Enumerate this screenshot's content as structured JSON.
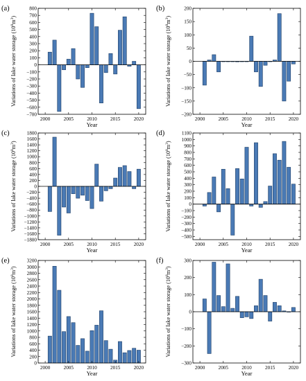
{
  "chart_data": [
    {
      "panel": "(a)",
      "type": "bar",
      "xlabel": "Year",
      "ylabel_main": "Variations of lake water storage (10",
      "ylabel_sup1": "8",
      "ylabel_mid": "m",
      "ylabel_sup2": "3",
      "ylabel_end": ")",
      "ylim": [
        -700,
        800
      ],
      "yticks": [
        -700,
        -600,
        -500,
        -400,
        -300,
        -200,
        -100,
        0,
        100,
        200,
        300,
        400,
        500,
        600,
        700,
        800
      ],
      "xlim": [
        1998.5,
        2021.5
      ],
      "xticks": [
        2000,
        2005,
        2010,
        2015,
        2020
      ],
      "years": [
        2001,
        2002,
        2003,
        2004,
        2005,
        2006,
        2007,
        2008,
        2009,
        2010,
        2011,
        2012,
        2013,
        2014,
        2015,
        2016,
        2017,
        2018,
        2019,
        2020
      ],
      "values": [
        180,
        350,
        -660,
        -70,
        80,
        230,
        -200,
        -320,
        -40,
        730,
        540,
        -540,
        -110,
        160,
        -130,
        490,
        680,
        -20,
        50,
        -620
      ]
    },
    {
      "panel": "(b)",
      "type": "bar",
      "xlabel": "Year",
      "ylabel_main": "Variations of lake water storage (10",
      "ylabel_sup1": "8",
      "ylabel_mid": "m",
      "ylabel_sup2": "3",
      "ylabel_end": ")",
      "ylim": [
        -200,
        200
      ],
      "yticks": [
        -200,
        -150,
        -100,
        -50,
        0,
        50,
        100,
        150,
        200
      ],
      "xlim": [
        1998.5,
        2021.5
      ],
      "xticks": [
        2000,
        2005,
        2010,
        2015,
        2020
      ],
      "years": [
        2001,
        2002,
        2003,
        2004,
        2005,
        2006,
        2007,
        2008,
        2009,
        2010,
        2011,
        2012,
        2013,
        2014,
        2015,
        2016,
        2017,
        2018,
        2019,
        2020
      ],
      "values": [
        -90,
        5,
        25,
        -40,
        0,
        0,
        0,
        -2,
        0,
        0,
        95,
        -40,
        -95,
        -15,
        0,
        5,
        180,
        -150,
        -75,
        -10
      ]
    },
    {
      "panel": "(c)",
      "type": "bar",
      "xlabel": "Year",
      "ylabel_main": "Variations of lake water storage (10",
      "ylabel_sup1": "8",
      "ylabel_mid": "m",
      "ylabel_sup2": "3",
      "ylabel_end": ")",
      "ylim": [
        -1800,
        1800
      ],
      "yticks": [
        -1800,
        -1600,
        -1400,
        -1200,
        -1000,
        -800,
        -600,
        -400,
        -200,
        0,
        200,
        400,
        600,
        800,
        1000,
        1200,
        1400,
        1600,
        1800
      ],
      "xlim": [
        1998.5,
        2021.5
      ],
      "xticks": [
        2000,
        2005,
        2010,
        2015,
        2020
      ],
      "years": [
        2001,
        2002,
        2003,
        2004,
        2005,
        2006,
        2007,
        2008,
        2009,
        2010,
        2011,
        2012,
        2013,
        2014,
        2015,
        2016,
        2017,
        2018,
        2019,
        2020
      ],
      "values": [
        -850,
        1660,
        -1650,
        -700,
        -900,
        -250,
        -400,
        -300,
        -480,
        -750,
        750,
        -500,
        -150,
        -80,
        280,
        640,
        700,
        500,
        -80,
        580
      ]
    },
    {
      "panel": "(d)",
      "type": "bar",
      "xlabel": "Year",
      "ylabel_main": "Variations of lake water storage (10",
      "ylabel_sup1": "8",
      "ylabel_mid": "m",
      "ylabel_sup2": "3",
      "ylabel_end": ")",
      "ylim": [
        -550,
        1100
      ],
      "yticks": [
        -500,
        -400,
        -300,
        -200,
        -100,
        0,
        100,
        200,
        300,
        400,
        500,
        600,
        700,
        800,
        900,
        1000,
        1100
      ],
      "xlim": [
        1998.5,
        2021.5
      ],
      "xticks": [
        2000,
        2005,
        2010,
        2015,
        2020
      ],
      "years": [
        2001,
        2002,
        2003,
        2004,
        2005,
        2006,
        2007,
        2008,
        2009,
        2010,
        2011,
        2012,
        2013,
        2014,
        2015,
        2016,
        2017,
        2018,
        2019,
        2020
      ],
      "values": [
        -30,
        180,
        420,
        -120,
        540,
        240,
        -480,
        550,
        390,
        880,
        -30,
        950,
        -50,
        40,
        280,
        780,
        680,
        970,
        570,
        310
      ]
    },
    {
      "panel": "(e)",
      "type": "bar",
      "xlabel": "Year",
      "ylabel_main": "Variations of lake water storage (10",
      "ylabel_sup1": "8",
      "ylabel_mid": "m",
      "ylabel_sup2": "3",
      "ylabel_end": ")",
      "ylim": [
        0,
        3200
      ],
      "yticks": [
        0,
        200,
        400,
        600,
        800,
        1000,
        1200,
        1400,
        1600,
        1800,
        2000,
        2200,
        2400,
        2600,
        2800,
        3000,
        3200
      ],
      "xlim": [
        1998.5,
        2021.5
      ],
      "xticks": [
        2000,
        2005,
        2010,
        2015,
        2020
      ],
      "years": [
        2001,
        2002,
        2003,
        2004,
        2005,
        2006,
        2007,
        2008,
        2009,
        2010,
        2011,
        2012,
        2013,
        2014,
        2015,
        2016,
        2017,
        2018,
        2019,
        2020
      ],
      "values": [
        840,
        3020,
        2270,
        980,
        1450,
        1260,
        550,
        760,
        370,
        1010,
        1180,
        1630,
        700,
        430,
        90,
        670,
        320,
        390,
        460,
        400
      ]
    },
    {
      "panel": "(f)",
      "type": "bar",
      "xlabel": "Year",
      "ylabel_main": "Variations of lake water storage (10",
      "ylabel_sup1": "8",
      "ylabel_mid": "m",
      "ylabel_sup2": "3",
      "ylabel_end": ")",
      "ylim": [
        -300,
        300
      ],
      "yticks": [
        -300,
        -200,
        -100,
        0,
        100,
        200,
        300
      ],
      "xlim": [
        1998.5,
        2021.5
      ],
      "xticks": [
        2000,
        2005,
        2010,
        2015,
        2020
      ],
      "years": [
        2001,
        2002,
        2003,
        2004,
        2005,
        2006,
        2007,
        2008,
        2009,
        2010,
        2011,
        2012,
        2013,
        2014,
        2015,
        2016,
        2017,
        2018,
        2019,
        2020
      ],
      "values": [
        75,
        -245,
        290,
        95,
        30,
        280,
        20,
        90,
        -35,
        -30,
        -40,
        35,
        190,
        95,
        -55,
        55,
        35,
        5,
        0,
        25
      ]
    }
  ]
}
